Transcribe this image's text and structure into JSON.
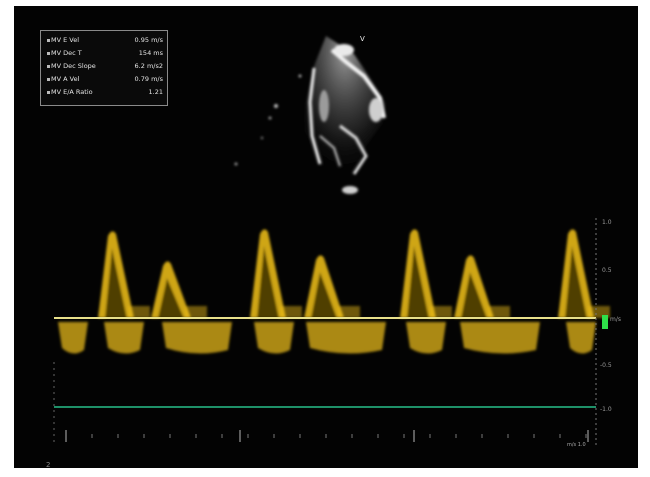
{
  "measurements": [
    {
      "label": "MV E Vel",
      "value": "0.95 m/s"
    },
    {
      "label": "MV Dec T",
      "value": "154 ms"
    },
    {
      "label": "MV Dec Slope",
      "value": "6.2 m/s2"
    },
    {
      "label": "MV A Vel",
      "value": "0.79 m/s"
    },
    {
      "label": "MV E/A Ratio",
      "value": "1.21"
    }
  ],
  "probe_marker": "V",
  "scale_labels": [
    "1.0",
    "0.5",
    "m/s",
    "-0.5",
    "-1.0"
  ],
  "unit_label": "m/s  1.0",
  "corner_mark": "2",
  "colors": {
    "doppler": "#f2c21a",
    "baseline": "#e8e08a",
    "sweep_line": "#27c08a",
    "marker": "#2ee04a"
  }
}
